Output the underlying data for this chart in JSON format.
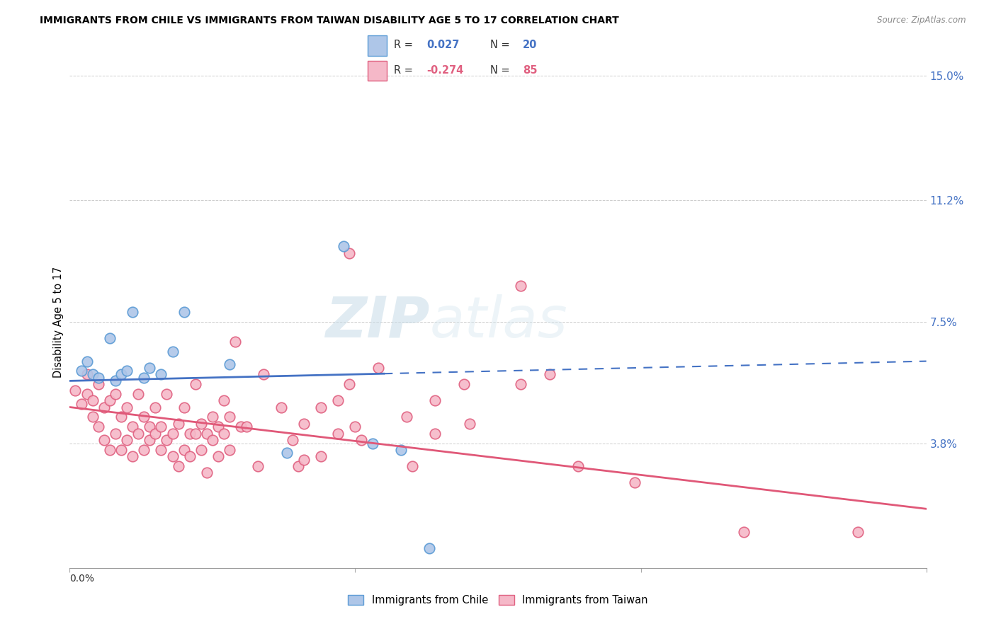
{
  "title": "IMMIGRANTS FROM CHILE VS IMMIGRANTS FROM TAIWAN DISABILITY AGE 5 TO 17 CORRELATION CHART",
  "source": "Source: ZipAtlas.com",
  "ylabel": "Disability Age 5 to 17",
  "right_yticks": [
    0.0,
    0.038,
    0.075,
    0.112,
    0.15
  ],
  "right_yticklabels": [
    "",
    "3.8%",
    "7.5%",
    "11.2%",
    "15.0%"
  ],
  "xlim": [
    0.0,
    0.15
  ],
  "ylim": [
    0.0,
    0.15
  ],
  "chile_color": "#aec6e8",
  "taiwan_color": "#f5b8c8",
  "chile_edge_color": "#5b9bd5",
  "taiwan_edge_color": "#e06080",
  "chile_line_color": "#4472c4",
  "taiwan_line_color": "#e05878",
  "chile_R": 0.027,
  "chile_N": 20,
  "taiwan_R": -0.274,
  "taiwan_N": 85,
  "watermark_zip": "ZIP",
  "watermark_atlas": "atlas",
  "chile_line_solid_end": 0.055,
  "chile_line_start_y": 0.057,
  "chile_line_end_y": 0.063,
  "taiwan_line_start_y": 0.049,
  "taiwan_line_end_y": 0.018,
  "chile_points": [
    [
      0.002,
      0.06
    ],
    [
      0.003,
      0.063
    ],
    [
      0.004,
      0.059
    ],
    [
      0.005,
      0.058
    ],
    [
      0.007,
      0.07
    ],
    [
      0.008,
      0.057
    ],
    [
      0.009,
      0.059
    ],
    [
      0.01,
      0.06
    ],
    [
      0.011,
      0.078
    ],
    [
      0.013,
      0.058
    ],
    [
      0.014,
      0.061
    ],
    [
      0.016,
      0.059
    ],
    [
      0.018,
      0.066
    ],
    [
      0.02,
      0.078
    ],
    [
      0.028,
      0.062
    ],
    [
      0.038,
      0.035
    ],
    [
      0.048,
      0.098
    ],
    [
      0.053,
      0.038
    ],
    [
      0.058,
      0.036
    ],
    [
      0.063,
      0.006
    ]
  ],
  "taiwan_points": [
    [
      0.001,
      0.054
    ],
    [
      0.002,
      0.05
    ],
    [
      0.003,
      0.053
    ],
    [
      0.003,
      0.059
    ],
    [
      0.004,
      0.051
    ],
    [
      0.004,
      0.046
    ],
    [
      0.005,
      0.056
    ],
    [
      0.005,
      0.043
    ],
    [
      0.006,
      0.049
    ],
    [
      0.006,
      0.039
    ],
    [
      0.007,
      0.051
    ],
    [
      0.007,
      0.036
    ],
    [
      0.008,
      0.053
    ],
    [
      0.008,
      0.041
    ],
    [
      0.009,
      0.046
    ],
    [
      0.009,
      0.036
    ],
    [
      0.01,
      0.049
    ],
    [
      0.01,
      0.039
    ],
    [
      0.011,
      0.043
    ],
    [
      0.011,
      0.034
    ],
    [
      0.012,
      0.053
    ],
    [
      0.012,
      0.041
    ],
    [
      0.013,
      0.046
    ],
    [
      0.013,
      0.036
    ],
    [
      0.014,
      0.043
    ],
    [
      0.014,
      0.039
    ],
    [
      0.015,
      0.049
    ],
    [
      0.015,
      0.041
    ],
    [
      0.016,
      0.043
    ],
    [
      0.016,
      0.036
    ],
    [
      0.017,
      0.053
    ],
    [
      0.017,
      0.039
    ],
    [
      0.018,
      0.041
    ],
    [
      0.018,
      0.034
    ],
    [
      0.019,
      0.044
    ],
    [
      0.019,
      0.031
    ],
    [
      0.02,
      0.049
    ],
    [
      0.02,
      0.036
    ],
    [
      0.021,
      0.041
    ],
    [
      0.021,
      0.034
    ],
    [
      0.022,
      0.056
    ],
    [
      0.022,
      0.041
    ],
    [
      0.023,
      0.044
    ],
    [
      0.023,
      0.036
    ],
    [
      0.024,
      0.041
    ],
    [
      0.024,
      0.029
    ],
    [
      0.025,
      0.046
    ],
    [
      0.025,
      0.039
    ],
    [
      0.026,
      0.043
    ],
    [
      0.026,
      0.034
    ],
    [
      0.027,
      0.051
    ],
    [
      0.027,
      0.041
    ],
    [
      0.028,
      0.046
    ],
    [
      0.028,
      0.036
    ],
    [
      0.029,
      0.069
    ],
    [
      0.03,
      0.043
    ],
    [
      0.031,
      0.043
    ],
    [
      0.033,
      0.031
    ],
    [
      0.034,
      0.059
    ],
    [
      0.037,
      0.049
    ],
    [
      0.039,
      0.039
    ],
    [
      0.04,
      0.031
    ],
    [
      0.041,
      0.044
    ],
    [
      0.041,
      0.033
    ],
    [
      0.044,
      0.049
    ],
    [
      0.044,
      0.034
    ],
    [
      0.047,
      0.051
    ],
    [
      0.047,
      0.041
    ],
    [
      0.049,
      0.056
    ],
    [
      0.05,
      0.043
    ],
    [
      0.051,
      0.039
    ],
    [
      0.054,
      0.061
    ],
    [
      0.059,
      0.046
    ],
    [
      0.06,
      0.031
    ],
    [
      0.064,
      0.051
    ],
    [
      0.064,
      0.041
    ],
    [
      0.069,
      0.056
    ],
    [
      0.07,
      0.044
    ],
    [
      0.079,
      0.086
    ],
    [
      0.079,
      0.056
    ],
    [
      0.084,
      0.059
    ],
    [
      0.089,
      0.031
    ],
    [
      0.099,
      0.026
    ],
    [
      0.118,
      0.011
    ],
    [
      0.138,
      0.011
    ],
    [
      0.049,
      0.096
    ]
  ]
}
